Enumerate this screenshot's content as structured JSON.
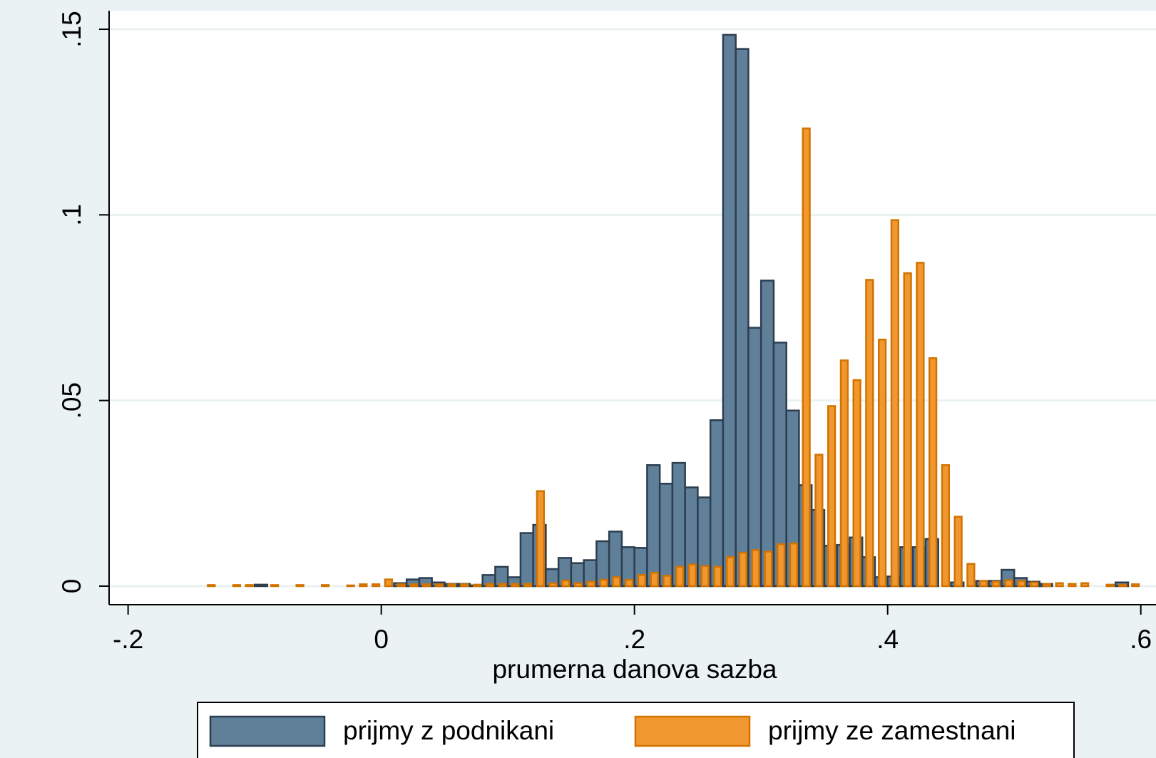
{
  "chart_data": {
    "type": "histogram",
    "xlabel": "prumerna danova sazba",
    "xlim": [
      -0.215,
      0.612
    ],
    "ylim": [
      -0.005,
      0.155
    ],
    "xticks": [
      {
        "value": -0.2,
        "label": "-.2"
      },
      0,
      {
        "value": 0.2,
        "label": ".2"
      },
      {
        "value": 0.4,
        "label": ".4"
      },
      {
        "value": 0.6,
        "label": ".6"
      }
    ],
    "yticks": [
      0,
      {
        "value": 0.05,
        "label": ".05"
      },
      {
        "value": 0.1,
        "label": ".1"
      },
      {
        "value": 0.15,
        "label": ".15"
      }
    ],
    "grid": true,
    "legend": "bottom",
    "series": [
      {
        "name": "prijmy z podnikani",
        "color": "#60809a",
        "edge_color": "#2c3e50",
        "bar_width": 1,
        "bins": [
          -0.1,
          -0.09,
          -0.08,
          -0.07,
          -0.06,
          -0.05,
          -0.04,
          -0.03,
          -0.02,
          -0.01,
          0.0,
          0.01,
          0.02,
          0.03,
          0.04,
          0.05,
          0.06,
          0.07,
          0.08,
          0.09,
          0.1,
          0.11,
          0.12,
          0.13,
          0.14,
          0.15,
          0.16,
          0.17,
          0.18,
          0.19,
          0.2,
          0.21,
          0.22,
          0.23,
          0.24,
          0.25,
          0.26,
          0.27,
          0.28,
          0.29,
          0.3,
          0.31,
          0.32,
          0.33,
          0.34,
          0.35,
          0.36,
          0.37,
          0.38,
          0.39,
          0.4,
          0.41,
          0.42,
          0.43,
          0.44,
          0.45,
          0.46,
          0.47,
          0.48,
          0.49,
          0.5,
          0.51,
          0.52,
          0.53,
          0.54,
          0.55,
          0.56,
          0.57,
          0.58,
          0.59,
          0.6
        ],
        "values": [
          0.0004,
          0,
          0,
          0,
          0,
          0,
          0,
          0,
          0,
          0,
          0,
          0.0008,
          0.0018,
          0.0022,
          0.001,
          0.0006,
          0.0006,
          0.0002,
          0.003,
          0.0052,
          0.0024,
          0.0143,
          0.0165,
          0.0046,
          0.0076,
          0.0062,
          0.007,
          0.0121,
          0.0147,
          0.0105,
          0.0103,
          0.0326,
          0.0276,
          0.0332,
          0.0266,
          0.0239,
          0.0447,
          0.1485,
          0.1447,
          0.0696,
          0.0823,
          0.0656,
          0.0473,
          0.0272,
          0.0205,
          0.0109,
          0.0111,
          0.0131,
          0.0078,
          0.0024,
          0.0026,
          0.0105,
          0.0105,
          0.0127,
          0,
          0.001,
          0,
          0.0014,
          0.0014,
          0.0044,
          0.0022,
          0.0012,
          0.0006,
          0,
          0,
          0,
          0,
          0,
          0.001,
          0
        ]
      },
      {
        "name": "prijmy ze zamestnani",
        "color": "#f0982f",
        "edge_color": "#d27300",
        "bar_width": 0.55,
        "bins": [
          -0.137,
          -0.127,
          -0.117,
          -0.107,
          -0.097,
          -0.087,
          -0.077,
          -0.067,
          -0.057,
          -0.047,
          -0.037,
          -0.027,
          -0.017,
          -0.007,
          0.003,
          0.013,
          0.023,
          0.033,
          0.043,
          0.053,
          0.063,
          0.073,
          0.083,
          0.093,
          0.103,
          0.113,
          0.123,
          0.133,
          0.143,
          0.153,
          0.163,
          0.173,
          0.183,
          0.193,
          0.203,
          0.213,
          0.223,
          0.233,
          0.243,
          0.253,
          0.263,
          0.273,
          0.283,
          0.293,
          0.303,
          0.313,
          0.323,
          0.333,
          0.343,
          0.353,
          0.363,
          0.373,
          0.383,
          0.393,
          0.403,
          0.413,
          0.423,
          0.433,
          0.443,
          0.453,
          0.463,
          0.473,
          0.483,
          0.493,
          0.503,
          0.513,
          0.523,
          0.533,
          0.543,
          0.553,
          0.563,
          0.573,
          0.583,
          0.593,
          0.603
        ],
        "values": [
          0.0003,
          0,
          0.0003,
          0.0003,
          0,
          0.0003,
          0,
          0.0003,
          0,
          0.0003,
          0,
          0.0002,
          0.0005,
          0.0005,
          0.0018,
          0.0005,
          0.0005,
          0.0005,
          0.0005,
          0.0005,
          0.0005,
          0.0004,
          0.0006,
          0.0006,
          0.0006,
          0.0006,
          0.0256,
          0.0008,
          0.0015,
          0.0008,
          0.0012,
          0.0017,
          0.0024,
          0.0017,
          0.003,
          0.0036,
          0.0028,
          0.0052,
          0.0058,
          0.0054,
          0.0052,
          0.0078,
          0.009,
          0.0097,
          0.0093,
          0.0113,
          0.0115,
          0.1233,
          0.0354,
          0.0485,
          0.0608,
          0.0555,
          0.0825,
          0.0664,
          0.0986,
          0.0843,
          0.0871,
          0.0614,
          0.0326,
          0.0187,
          0.006,
          0.0014,
          0.0012,
          0.0016,
          0.0014,
          0.001,
          0.0006,
          0.0008,
          0.0006,
          0.0008,
          0,
          0.0004,
          0.0004,
          0.0005
        ]
      }
    ]
  }
}
